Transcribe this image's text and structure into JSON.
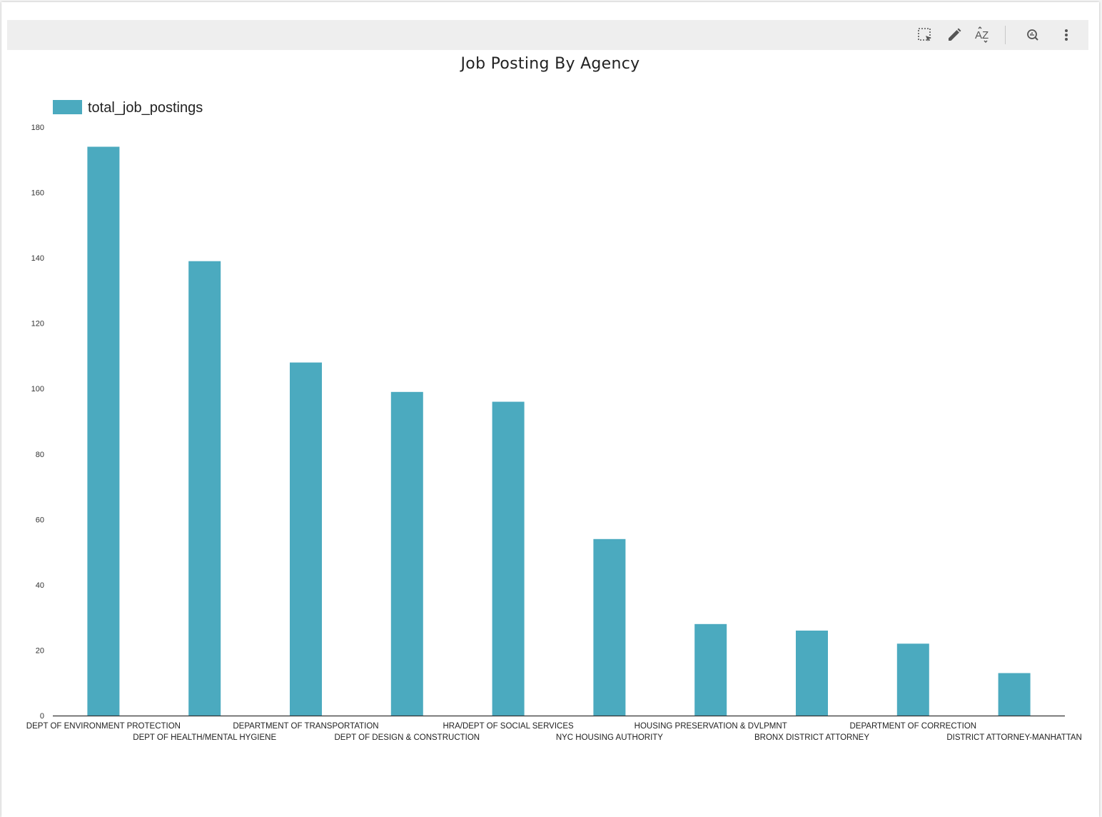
{
  "toolbar": {
    "icons": [
      "select-icon",
      "edit-icon",
      "sort-az-icon",
      "explore-icon",
      "more-vert-icon"
    ],
    "sort_label": "AZ"
  },
  "colors": {
    "bar": "#4baabf",
    "axis": "#333333"
  },
  "chart_data": {
    "type": "bar",
    "title": "Job Posting By Agency",
    "xlabel": "",
    "ylabel": "",
    "ylim": [
      0,
      180
    ],
    "yticks": [
      0,
      20,
      40,
      60,
      80,
      100,
      120,
      140,
      160,
      180
    ],
    "legend": {
      "placement": "top-left"
    },
    "grid": false,
    "categories": [
      "DEPT OF ENVIRONMENT PROTECTION",
      "DEPT OF HEALTH/MENTAL HYGIENE",
      "DEPARTMENT OF TRANSPORTATION",
      "DEPT OF DESIGN & CONSTRUCTION",
      "HRA/DEPT OF SOCIAL SERVICES",
      "NYC HOUSING AUTHORITY",
      "HOUSING PRESERVATION & DVLPMNT",
      "BRONX DISTRICT ATTORNEY",
      "DEPARTMENT OF CORRECTION",
      "DISTRICT ATTORNEY-MANHATTAN"
    ],
    "series": [
      {
        "name": "total_job_postings",
        "values": [
          174,
          139,
          108,
          99,
          96,
          54,
          28,
          26,
          22,
          13
        ]
      }
    ]
  }
}
